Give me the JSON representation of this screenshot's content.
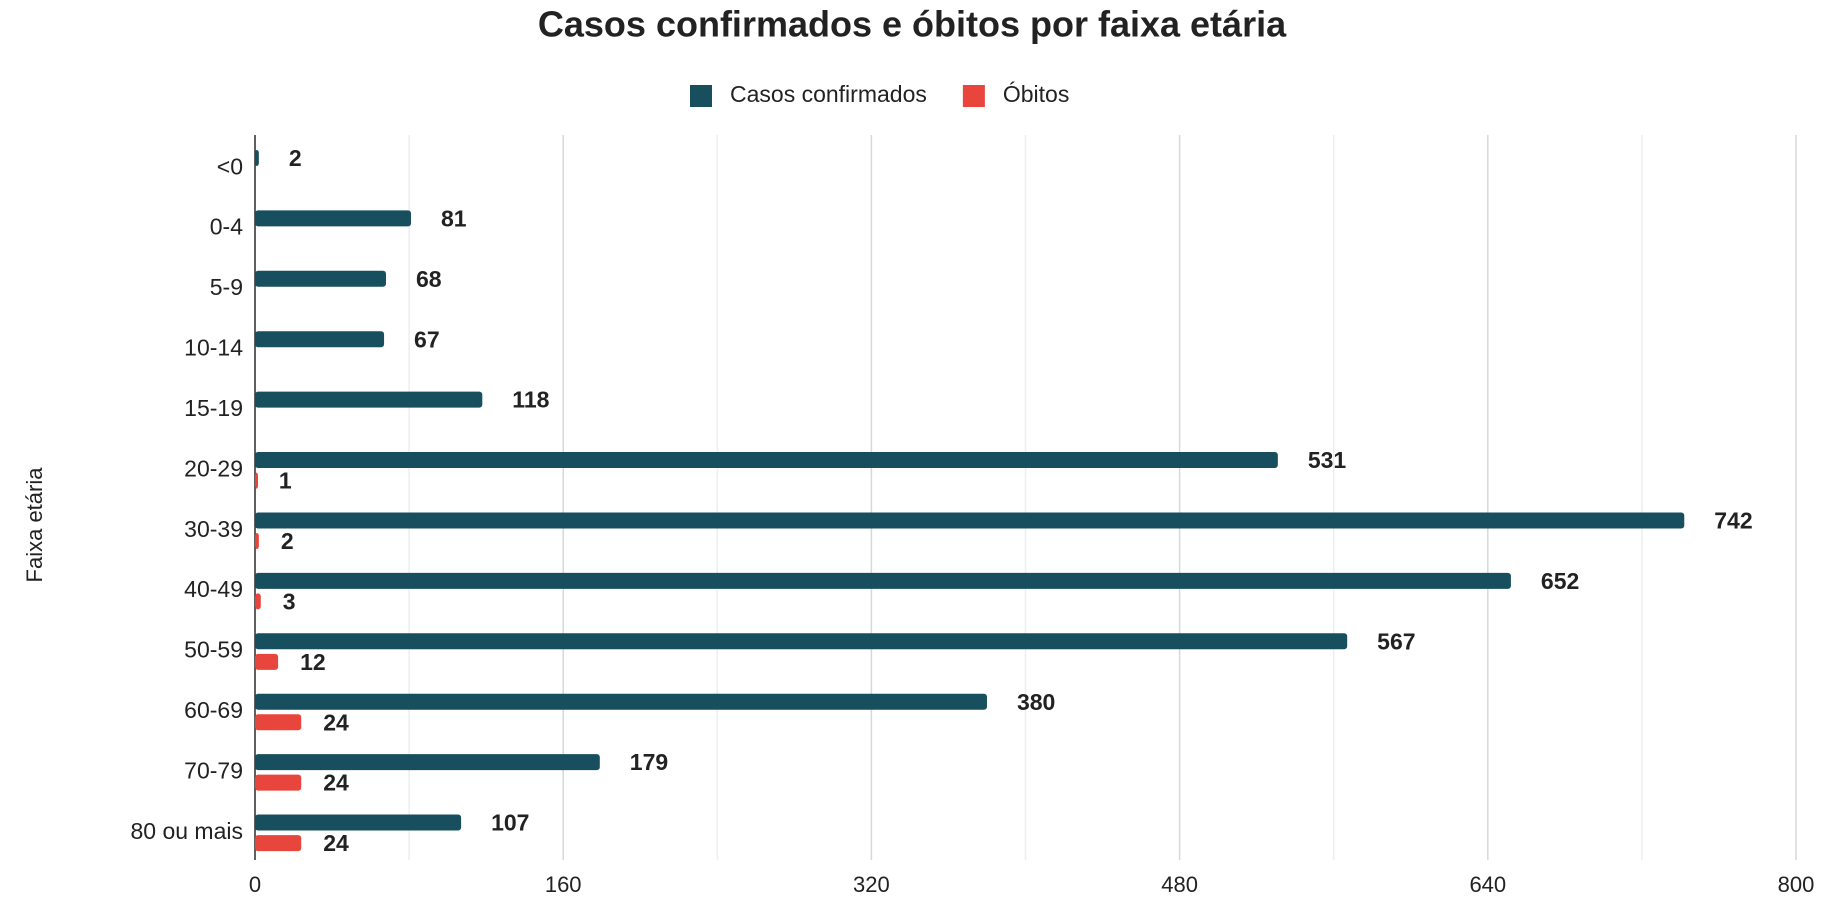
{
  "chart_data": {
    "type": "hbar",
    "title": "Casos confirmados e óbitos por faixa etária",
    "y_label": "Faixa etária",
    "categories": [
      "<0",
      "0-4",
      "5-9",
      "10-14",
      "15-19",
      "20-29",
      "30-39",
      "40-49",
      "50-59",
      "60-69",
      "70-79",
      "80 ou mais"
    ],
    "series": [
      {
        "name": "Casos confirmados",
        "color": "#174f5f",
        "values": [
          2,
          81,
          68,
          67,
          118,
          531,
          742,
          652,
          567,
          380,
          179,
          107
        ]
      },
      {
        "name": "Óbitos",
        "color": "#e8453c",
        "values": [
          null,
          null,
          null,
          null,
          null,
          1,
          2,
          3,
          12,
          24,
          24,
          24
        ]
      }
    ],
    "xlim": [
      0,
      800
    ],
    "xticks": [
      0,
      160,
      320,
      480,
      640,
      800
    ],
    "grid": true,
    "minor_grid": true,
    "legend": "top"
  }
}
